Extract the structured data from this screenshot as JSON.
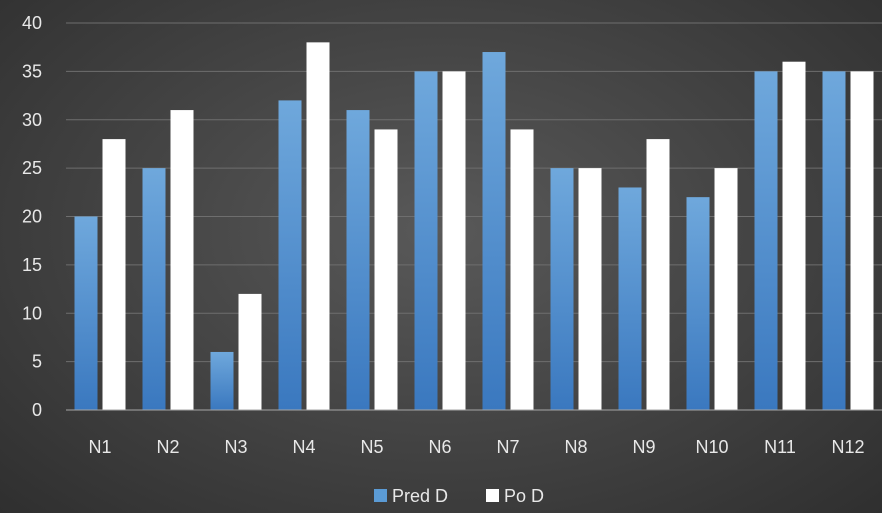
{
  "chart_data": {
    "type": "bar",
    "categories": [
      "N1",
      "N2",
      "N3",
      "N4",
      "N5",
      "N6",
      "N7",
      "N8",
      "N9",
      "N10",
      "N11",
      "N12"
    ],
    "series": [
      {
        "name": "Pred D",
        "values": [
          20,
          25,
          6,
          32,
          31,
          35,
          37,
          25,
          23,
          22,
          35,
          35
        ],
        "color": "#5b9bd5"
      },
      {
        "name": "Po D",
        "values": [
          28,
          31,
          12,
          38,
          29,
          35,
          29,
          25,
          28,
          25,
          36,
          35
        ],
        "color": "#ffffff"
      }
    ],
    "ylim": [
      0,
      40
    ],
    "yticks": [
      0,
      5,
      10,
      15,
      20,
      25,
      30,
      35,
      40
    ],
    "grid": true,
    "legend_position": "bottom",
    "title": "",
    "xlabel": "",
    "ylabel": ""
  }
}
